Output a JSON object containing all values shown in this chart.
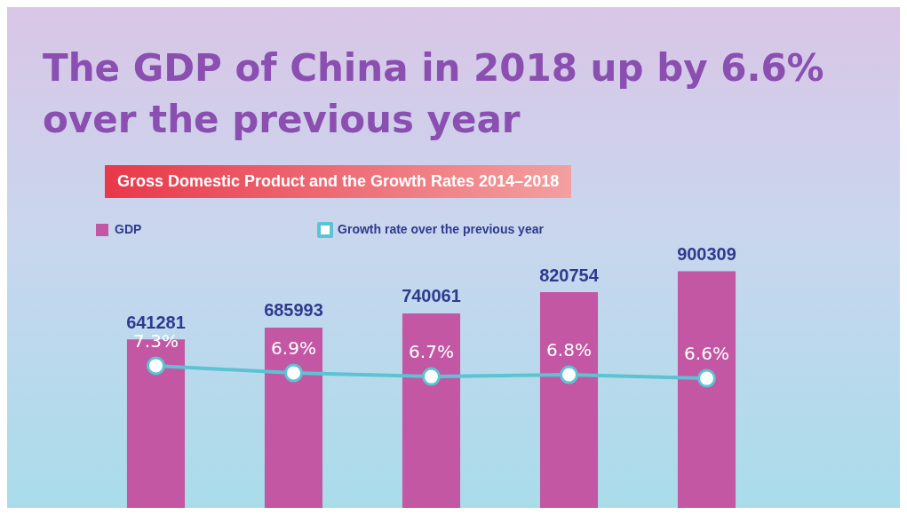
{
  "chart_data": [
    {
      "type": "bar",
      "title": "The GDP of China in 2018 up by 6.6% over the previous year",
      "subtitle": "Gross Domestic Product and the Growth Rates 2014–2018",
      "categories": [
        null,
        null,
        null,
        null,
        null
      ],
      "series": [
        {
          "name": "GDP",
          "color": "#c457a3",
          "values": [
            641281,
            685993,
            740061,
            820754,
            900309
          ]
        }
      ],
      "data_labels": true,
      "legend": "top left"
    },
    {
      "type": "line",
      "categories": [
        null,
        null,
        null,
        null,
        null
      ],
      "series": [
        {
          "name": "Growth rate over the previous year",
          "color": "#5bc3d3",
          "values": [
            7.3,
            6.9,
            6.7,
            6.8,
            6.6
          ],
          "value_labels": [
            "7.3%",
            "6.9%",
            "6.7%",
            "6.8%",
            "6.6%"
          ]
        }
      ],
      "marker": "circle",
      "legend": "top"
    }
  ]
}
